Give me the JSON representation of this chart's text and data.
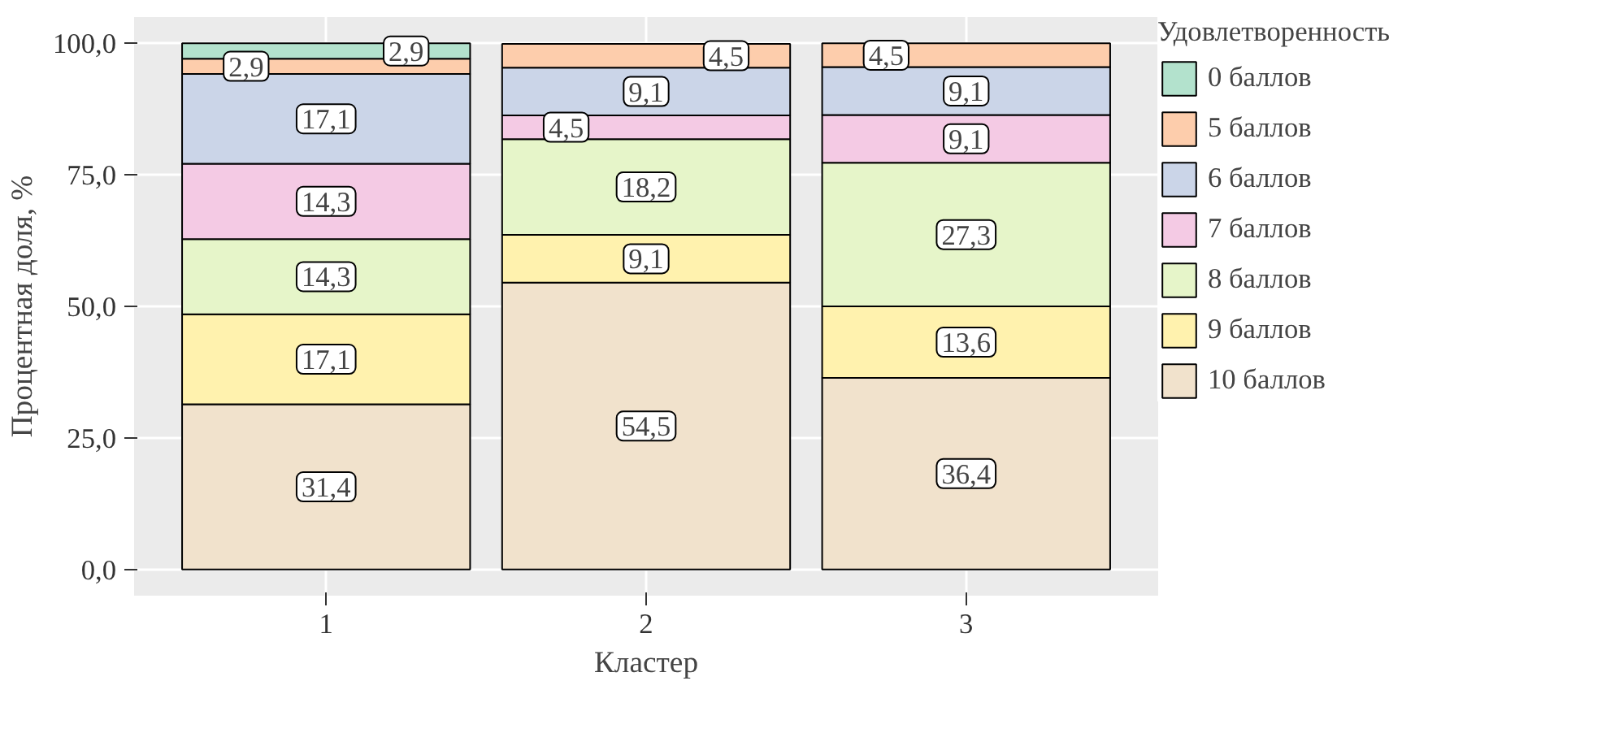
{
  "chart_data": {
    "type": "bar",
    "stacked": true,
    "xlabel": "Кластер",
    "ylabel": "Процентная доля, %",
    "legend_title": "Удовлетворенность",
    "categories": [
      "1",
      "2",
      "3"
    ],
    "series": [
      {
        "name": "10 баллов",
        "color": "#f1e2cc",
        "values": [
          31.4,
          54.5,
          36.4
        ],
        "value_labels": [
          "31,4",
          "54,5",
          "36,4"
        ]
      },
      {
        "name": "9 баллов",
        "color": "#fff2ae",
        "values": [
          17.1,
          9.1,
          13.6
        ],
        "value_labels": [
          "17,1",
          "9,1",
          "13,6"
        ]
      },
      {
        "name": "8 баллов",
        "color": "#e6f5c9",
        "values": [
          14.3,
          18.2,
          27.3
        ],
        "value_labels": [
          "14,3",
          "18,2",
          "27,3"
        ]
      },
      {
        "name": "7 баллов",
        "color": "#f4cae4",
        "values": [
          14.3,
          4.5,
          9.1
        ],
        "value_labels": [
          "14,3",
          "4,5",
          "9,1"
        ]
      },
      {
        "name": "6 баллов",
        "color": "#cbd5e8",
        "values": [
          17.1,
          9.1,
          9.1
        ],
        "value_labels": [
          "17,1",
          "9,1",
          "9,1"
        ]
      },
      {
        "name": "5 баллов",
        "color": "#fdcdac",
        "values": [
          2.9,
          4.5,
          4.5
        ],
        "value_labels": [
          "2,9",
          "4,5",
          "4,5"
        ]
      },
      {
        "name": "0 баллов",
        "color": "#b3e2cd",
        "values": [
          2.9,
          null,
          null
        ],
        "value_labels": [
          "2,9",
          null,
          null
        ]
      }
    ],
    "ylim": [
      -5,
      105
    ],
    "yticks": [
      {
        "value": 0,
        "label": "0,0"
      },
      {
        "value": 25,
        "label": "25,0"
      },
      {
        "value": 50,
        "label": "50,0"
      },
      {
        "value": 75,
        "label": "75,0"
      },
      {
        "value": 100,
        "label": "100,0"
      }
    ],
    "grid": true,
    "legend": "right"
  }
}
